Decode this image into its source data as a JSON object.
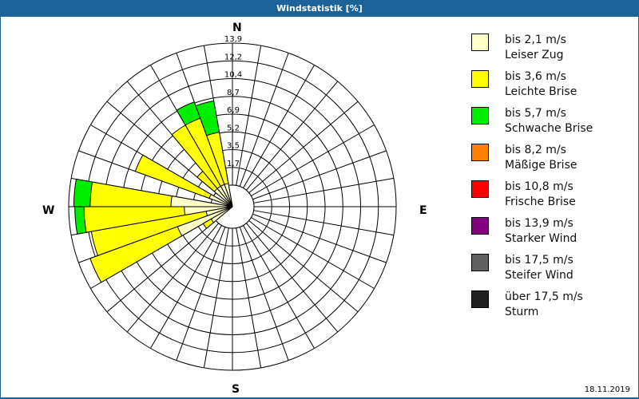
{
  "window": {
    "title": "Windstatistik [%]"
  },
  "footer": {
    "date": "18.11.2019"
  },
  "compass": {
    "n": "N",
    "e": "E",
    "s": "S",
    "w": "W"
  },
  "legend": [
    {
      "line1": "bis 2,1 m/s",
      "line2": "Leiser Zug",
      "color": "#ffffc8"
    },
    {
      "line1": "bis 3,6 m/s",
      "line2": "Leichte Brise",
      "color": "#ffff00"
    },
    {
      "line1": "bis 5,7 m/s",
      "line2": "Schwache Brise",
      "color": "#00ee00"
    },
    {
      "line1": "bis 8,2 m/s",
      "line2": "Mäßige Brise",
      "color": "#ff8000"
    },
    {
      "line1": "bis 10,8 m/s",
      "line2": "Frische Brise",
      "color": "#ff0000"
    },
    {
      "line1": "bis 13,9 m/s",
      "line2": "Starker Wind",
      "color": "#800080"
    },
    {
      "line1": "bis 17,5 m/s",
      "line2": "Steifer Wind",
      "color": "#606060"
    },
    {
      "line1": "über 17,5 m/s",
      "line2": "Sturm",
      "color": "#202020"
    }
  ],
  "chart_data": {
    "type": "polar-bar (wind rose)",
    "title": "Windstatistik [%]",
    "unit": "%",
    "ring_labels": [
      "1,7",
      "3,5",
      "5,2",
      "6,9",
      "8,7",
      "10,4",
      "12,2",
      "13,9"
    ],
    "rmax": 13.9,
    "sector_width_deg": 10,
    "direction_labels": [
      "N",
      "E",
      "S",
      "W"
    ],
    "series_names": [
      "bis 2,1 m/s (Leiser Zug)",
      "bis 3,6 m/s (Leichte Brise)",
      "bis 5,7 m/s (Schwache Brise)"
    ],
    "sectors": [
      {
        "dir": 345,
        "cumulative": [
          0.2,
          5.3,
          8.4
        ]
      },
      {
        "dir": 335,
        "cumulative": [
          0.2,
          7.1,
          8.8
        ]
      },
      {
        "dir": 325,
        "cumulative": [
          0.2,
          7.1,
          7.1
        ]
      },
      {
        "dir": 315,
        "cumulative": [
          0.2,
          2.4,
          2.4
        ]
      },
      {
        "dir": 295,
        "cumulative": [
          0.3,
          8.0,
          8.0
        ]
      },
      {
        "dir": 275,
        "cumulative": [
          3.9,
          11.8,
          13.4
        ]
      },
      {
        "dir": 265,
        "cumulative": [
          2.6,
          12.4,
          13.3
        ]
      },
      {
        "dir": 255,
        "cumulative": [
          0.5,
          11.9,
          11.9
        ]
      },
      {
        "dir": 245,
        "cumulative": [
          3.6,
          12.7,
          12.7
        ]
      },
      {
        "dir": 235,
        "cumulative": [
          0.3,
          1.2,
          1.2
        ]
      }
    ]
  }
}
